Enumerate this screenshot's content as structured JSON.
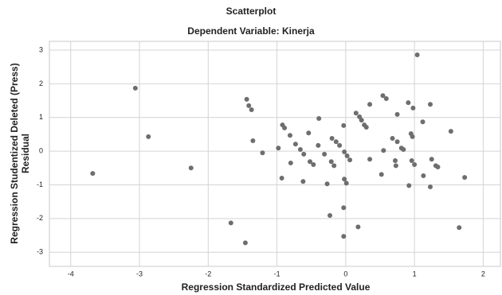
{
  "chart_data": {
    "type": "scatter",
    "title": "Scatterplot",
    "subtitle": "Dependent Variable: Kinerja",
    "x_label": "Regression Standardized Predicted Value",
    "y_label": [
      "Regression Studentized Deleted (Press)",
      "Residual"
    ],
    "color": "#6e6e6e",
    "grid": true,
    "xlim": [
      -4.31,
      2.25
    ],
    "ylim": [
      -3.42,
      3.26
    ],
    "xticks": [
      -4,
      -3,
      -2,
      -1,
      0,
      1,
      2
    ],
    "yticks": [
      -3,
      -2,
      -1,
      0,
      1,
      2,
      3
    ],
    "x": [
      1.04,
      -3.06,
      -2.87,
      -3.68,
      -2.25,
      -1.67,
      -1.46,
      -1.44,
      -1.41,
      -1.37,
      -1.35,
      -1.21,
      -0.98,
      -0.92,
      -0.89,
      -0.93,
      -0.81,
      -0.8,
      -0.73,
      -0.66,
      -0.61,
      -0.62,
      -0.54,
      -0.52,
      -0.47,
      -0.39,
      -0.4,
      -0.31,
      -0.27,
      -0.23,
      -0.21,
      -0.2,
      -0.17,
      -0.14,
      -0.09,
      -0.03,
      -0.03,
      -0.03,
      -0.02,
      -0.02,
      0.01,
      0.02,
      0.06,
      0.15,
      0.18,
      0.2,
      0.23,
      0.27,
      0.3,
      0.35,
      0.35,
      0.52,
      0.55,
      0.54,
      0.59,
      0.68,
      0.72,
      0.75,
      0.75,
      0.73,
      0.81,
      0.84,
      0.91,
      0.92,
      0.95,
      0.97,
      0.96,
      0.98,
      1.0,
      1.12,
      1.13,
      1.23,
      1.25,
      1.23,
      1.31,
      1.34,
      1.53,
      1.73,
      1.65
    ],
    "values": [
      2.86,
      1.87,
      0.43,
      -0.66,
      -0.5,
      -2.13,
      -2.72,
      1.54,
      1.35,
      1.23,
      0.31,
      -0.05,
      0.09,
      0.78,
      0.69,
      -0.8,
      0.47,
      -0.35,
      0.21,
      0.05,
      -0.09,
      -0.9,
      0.54,
      -0.31,
      -0.4,
      0.97,
      0.17,
      -0.09,
      -0.97,
      -1.91,
      -0.31,
      0.38,
      -0.43,
      0.28,
      0.17,
      0.76,
      -1.68,
      -2.53,
      -0.02,
      -0.83,
      -0.95,
      -0.14,
      -0.26,
      1.13,
      -2.25,
      1.02,
      0.92,
      0.78,
      0.71,
      1.39,
      -0.24,
      -0.69,
      0.02,
      1.65,
      1.56,
      0.38,
      -0.28,
      1.09,
      0.28,
      -0.43,
      0.09,
      0.05,
      1.44,
      -1.02,
      0.52,
      0.43,
      -0.28,
      1.28,
      -0.4,
      0.87,
      -0.73,
      1.39,
      -0.24,
      -1.06,
      -0.43,
      -0.47,
      0.59,
      -0.78,
      -2.27
    ]
  }
}
